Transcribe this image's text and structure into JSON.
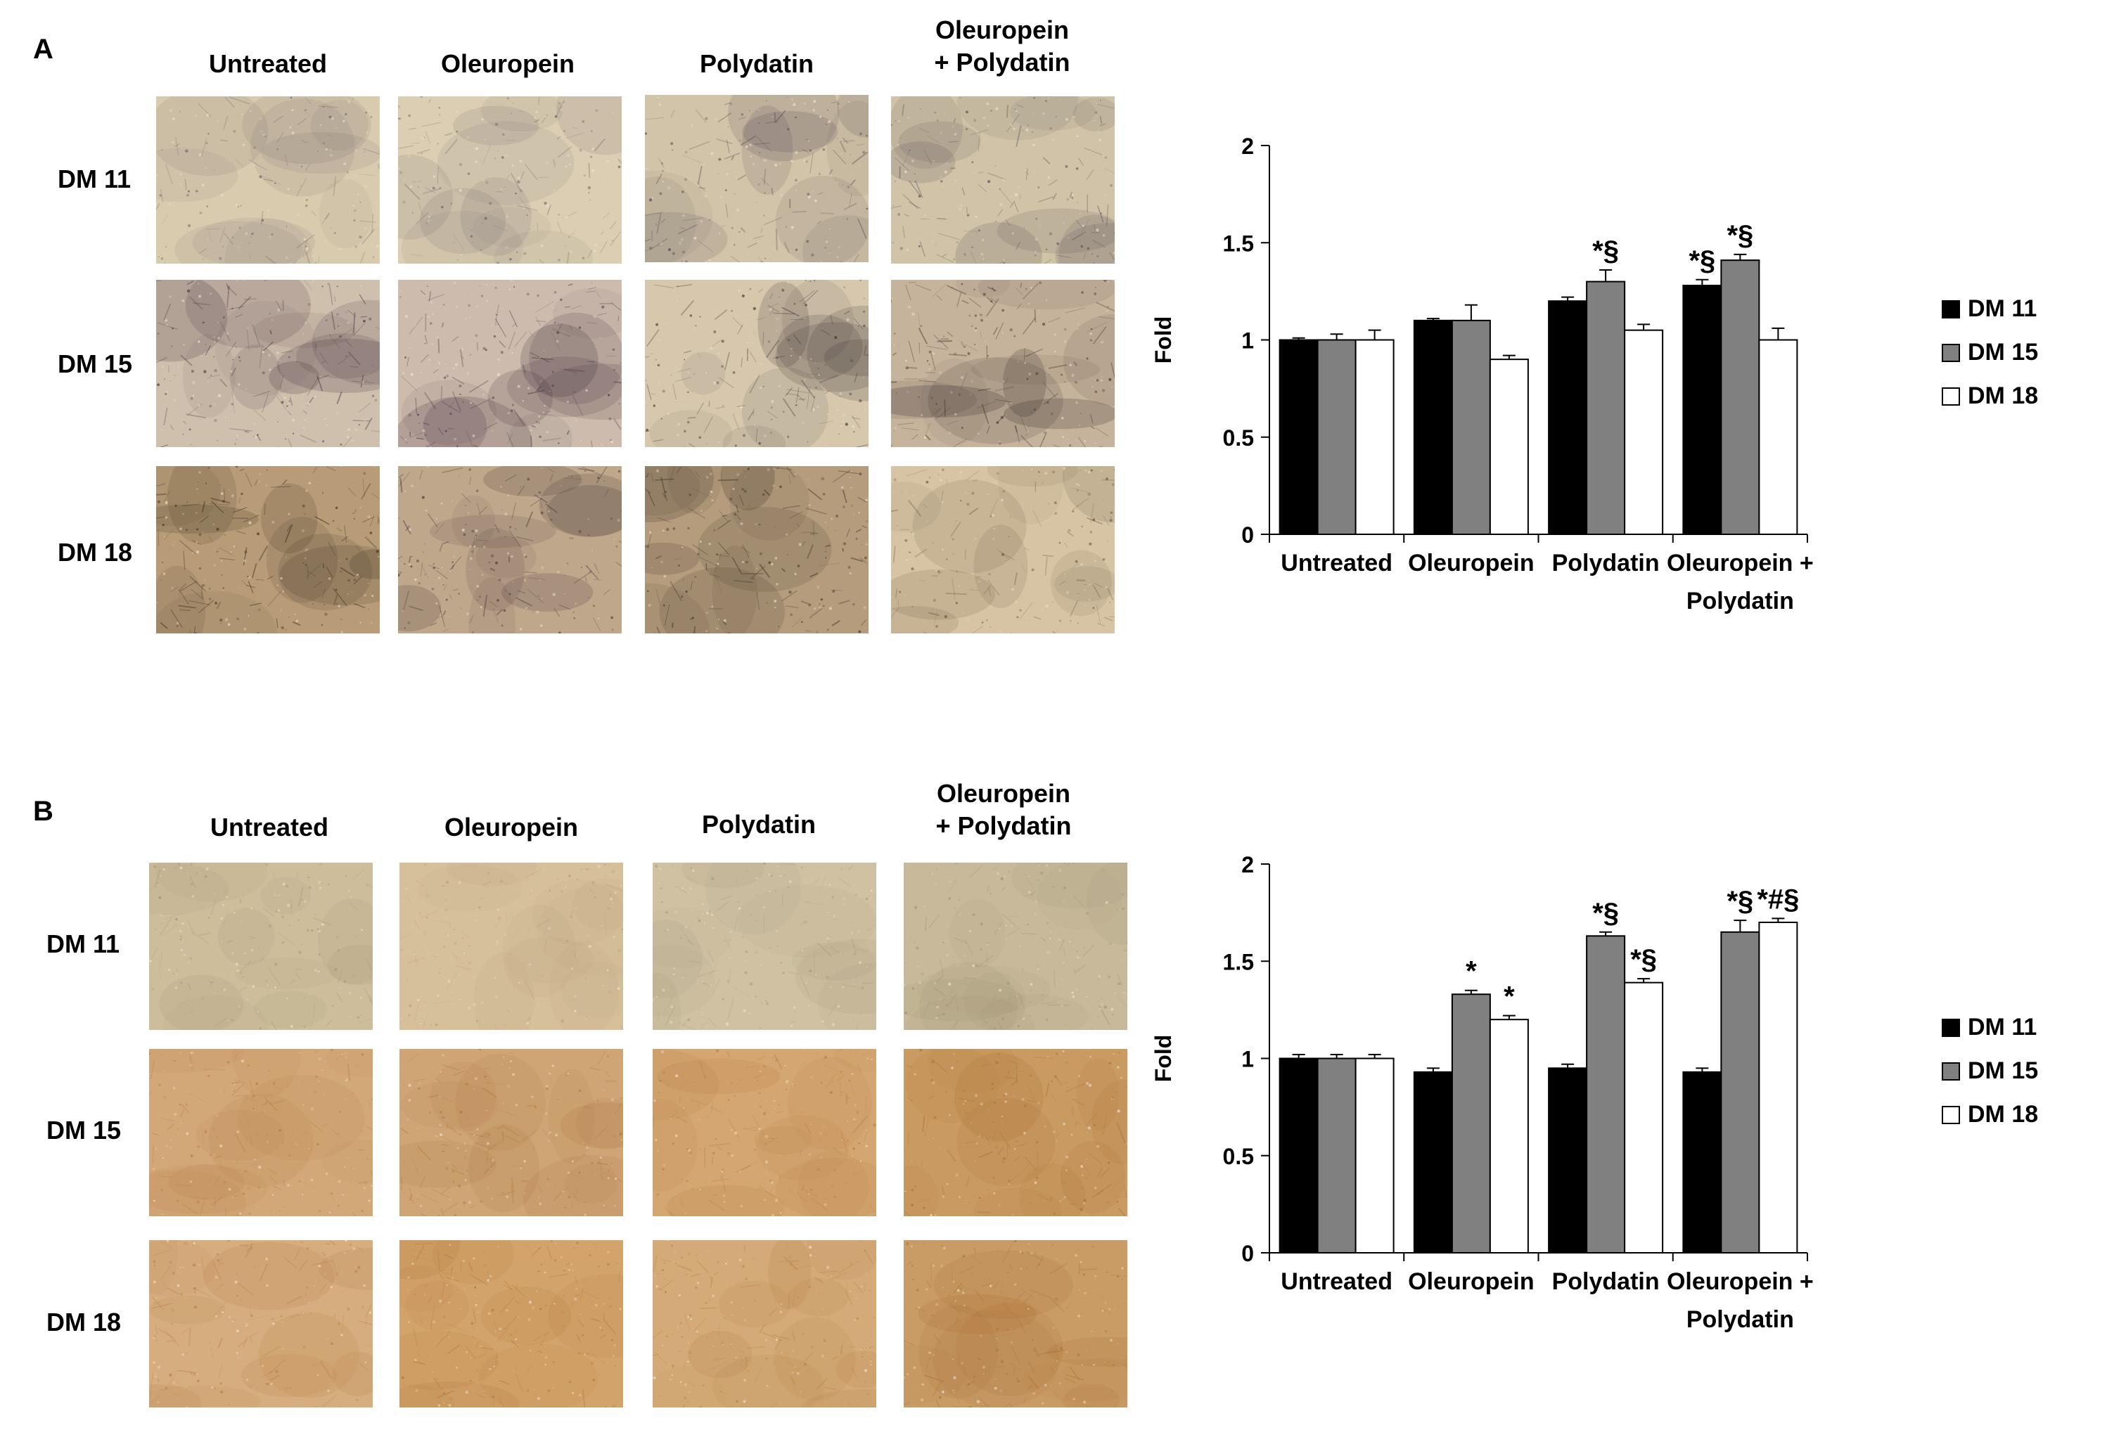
{
  "chart_data": [
    {
      "panel": "A",
      "type": "bar",
      "categories": [
        "Untreated",
        "Oleuropein",
        "Polydatin",
        "Oleuropein + Polydatin"
      ],
      "category_lines": [
        [
          "Untreated"
        ],
        [
          "Oleuropein"
        ],
        [
          "Polydatin"
        ],
        [
          "Oleuropein +",
          "Polydatin"
        ]
      ],
      "series": [
        {
          "name": "DM 11",
          "color": "#000000",
          "values": [
            1.0,
            1.1,
            1.2,
            1.28
          ],
          "errors": [
            0.01,
            0.01,
            0.02,
            0.03
          ]
        },
        {
          "name": "DM 15",
          "color": "#808080",
          "values": [
            1.0,
            1.1,
            1.3,
            1.41
          ],
          "errors": [
            0.03,
            0.08,
            0.06,
            0.03
          ]
        },
        {
          "name": "DM 18",
          "color": "#ffffff",
          "values": [
            1.0,
            0.9,
            1.05,
            1.0
          ],
          "errors": [
            0.05,
            0.02,
            0.03,
            0.06
          ]
        }
      ],
      "annotations": [
        {
          "series": 1,
          "category": 2,
          "text": "*§"
        },
        {
          "series": 0,
          "category": 3,
          "text": "*§"
        },
        {
          "series": 1,
          "category": 3,
          "text": "*§"
        }
      ],
      "title": "",
      "xlabel": "",
      "ylabel": "Fold",
      "ylim": [
        0,
        2
      ],
      "yticks": [
        0,
        0.5,
        1,
        1.5,
        2
      ],
      "ytick_labels": [
        "0",
        "0.5",
        "1",
        "1.5",
        "2"
      ],
      "grid": false,
      "legend": "right"
    },
    {
      "panel": "B",
      "type": "bar",
      "categories": [
        "Untreated",
        "Oleuropein",
        "Polydatin",
        "Oleuropein + Polydatin"
      ],
      "category_lines": [
        [
          "Untreated"
        ],
        [
          "Oleuropein"
        ],
        [
          "Polydatin"
        ],
        [
          "Oleuropein +",
          "Polydatin"
        ]
      ],
      "series": [
        {
          "name": "DM 11",
          "color": "#000000",
          "values": [
            1.0,
            0.93,
            0.95,
            0.93
          ],
          "errors": [
            0.02,
            0.02,
            0.02,
            0.02
          ]
        },
        {
          "name": "DM 15",
          "color": "#808080",
          "values": [
            1.0,
            1.33,
            1.63,
            1.65
          ],
          "errors": [
            0.02,
            0.02,
            0.02,
            0.06
          ]
        },
        {
          "name": "DM 18",
          "color": "#ffffff",
          "values": [
            1.0,
            1.2,
            1.39,
            1.7
          ],
          "errors": [
            0.02,
            0.02,
            0.02,
            0.02
          ]
        }
      ],
      "annotations": [
        {
          "series": 1,
          "category": 1,
          "text": "*"
        },
        {
          "series": 2,
          "category": 1,
          "text": "*"
        },
        {
          "series": 1,
          "category": 2,
          "text": "*§"
        },
        {
          "series": 2,
          "category": 2,
          "text": "*§"
        },
        {
          "series": 1,
          "category": 3,
          "text": "*§"
        },
        {
          "series": 2,
          "category": 3,
          "text": "*#§"
        }
      ],
      "title": "",
      "xlabel": "",
      "ylabel": "Fold",
      "ylim": [
        0,
        2
      ],
      "yticks": [
        0,
        0.5,
        1,
        1.5,
        2
      ],
      "ytick_labels": [
        "0",
        "0.5",
        "1",
        "1.5",
        "2"
      ],
      "grid": false,
      "legend": "right"
    }
  ],
  "panels": [
    {
      "label": "A",
      "column_headers": [
        [
          "Untreated"
        ],
        [
          "Oleuropein"
        ],
        [
          "Polydatin"
        ],
        [
          "Oleuropein",
          "+ Polydatin"
        ]
      ],
      "row_headers": [
        "DM 11",
        "DM 15",
        "DM 18"
      ],
      "tiles": [
        [
          {
            "base": "#d9cbae",
            "dark": "#5e5262",
            "density": 0.28
          },
          {
            "base": "#dbceb2",
            "dark": "#5a5060",
            "density": 0.3
          },
          {
            "base": "#d2c4a8",
            "dark": "#3f3548",
            "density": 0.45
          },
          {
            "base": "#d1c3a7",
            "dark": "#40384a",
            "density": 0.48
          }
        ],
        [
          {
            "base": "#cfbfad",
            "dark": "#3a2838",
            "density": 0.6
          },
          {
            "base": "#cdbcad",
            "dark": "#3a2234",
            "density": 0.62
          },
          {
            "base": "#d6c7ad",
            "dark": "#2f2a2c",
            "density": 0.5
          },
          {
            "base": "#c6b39b",
            "dark": "#2e2226",
            "density": 0.66
          }
        ],
        [
          {
            "base": "#b89c78",
            "dark": "#2e2418",
            "density": 0.7
          },
          {
            "base": "#bfa78c",
            "dark": "#3a2c30",
            "density": 0.55
          },
          {
            "base": "#b49c7c",
            "dark": "#2e2420",
            "density": 0.65
          },
          {
            "base": "#d6c4a4",
            "dark": "#5a4430",
            "density": 0.38
          }
        ]
      ]
    },
    {
      "label": "B",
      "column_headers": [
        [
          "Untreated"
        ],
        [
          "Oleuropein"
        ],
        [
          "Polydatin"
        ],
        [
          "Oleuropein",
          "+ Polydatin"
        ]
      ],
      "row_headers": [
        "DM 11",
        "DM 15",
        "DM 18"
      ],
      "tiles": [
        [
          {
            "base": "#cdbd9b",
            "dark": "#9c8b6c",
            "density": 0.3
          },
          {
            "base": "#d6c09a",
            "dark": "#b09470",
            "density": 0.2
          },
          {
            "base": "#cfc1a2",
            "dark": "#9f9276",
            "density": 0.3
          },
          {
            "base": "#c7b999",
            "dark": "#978a6c",
            "density": 0.32
          }
        ],
        [
          {
            "base": "#d3a878",
            "dark": "#b07840",
            "density": 0.4
          },
          {
            "base": "#cfa575",
            "dark": "#a86e3c",
            "density": 0.45
          },
          {
            "base": "#d4a672",
            "dark": "#b27438",
            "density": 0.42
          },
          {
            "base": "#c99a62",
            "dark": "#a8682a",
            "density": 0.5
          }
        ],
        [
          {
            "base": "#d5ad7e",
            "dark": "#b47840",
            "density": 0.45
          },
          {
            "base": "#d2a46c",
            "dark": "#b06e30",
            "density": 0.5
          },
          {
            "base": "#d3aa78",
            "dark": "#b0783e",
            "density": 0.45
          },
          {
            "base": "#c99c66",
            "dark": "#a86a30",
            "density": 0.5
          }
        ]
      ]
    }
  ]
}
